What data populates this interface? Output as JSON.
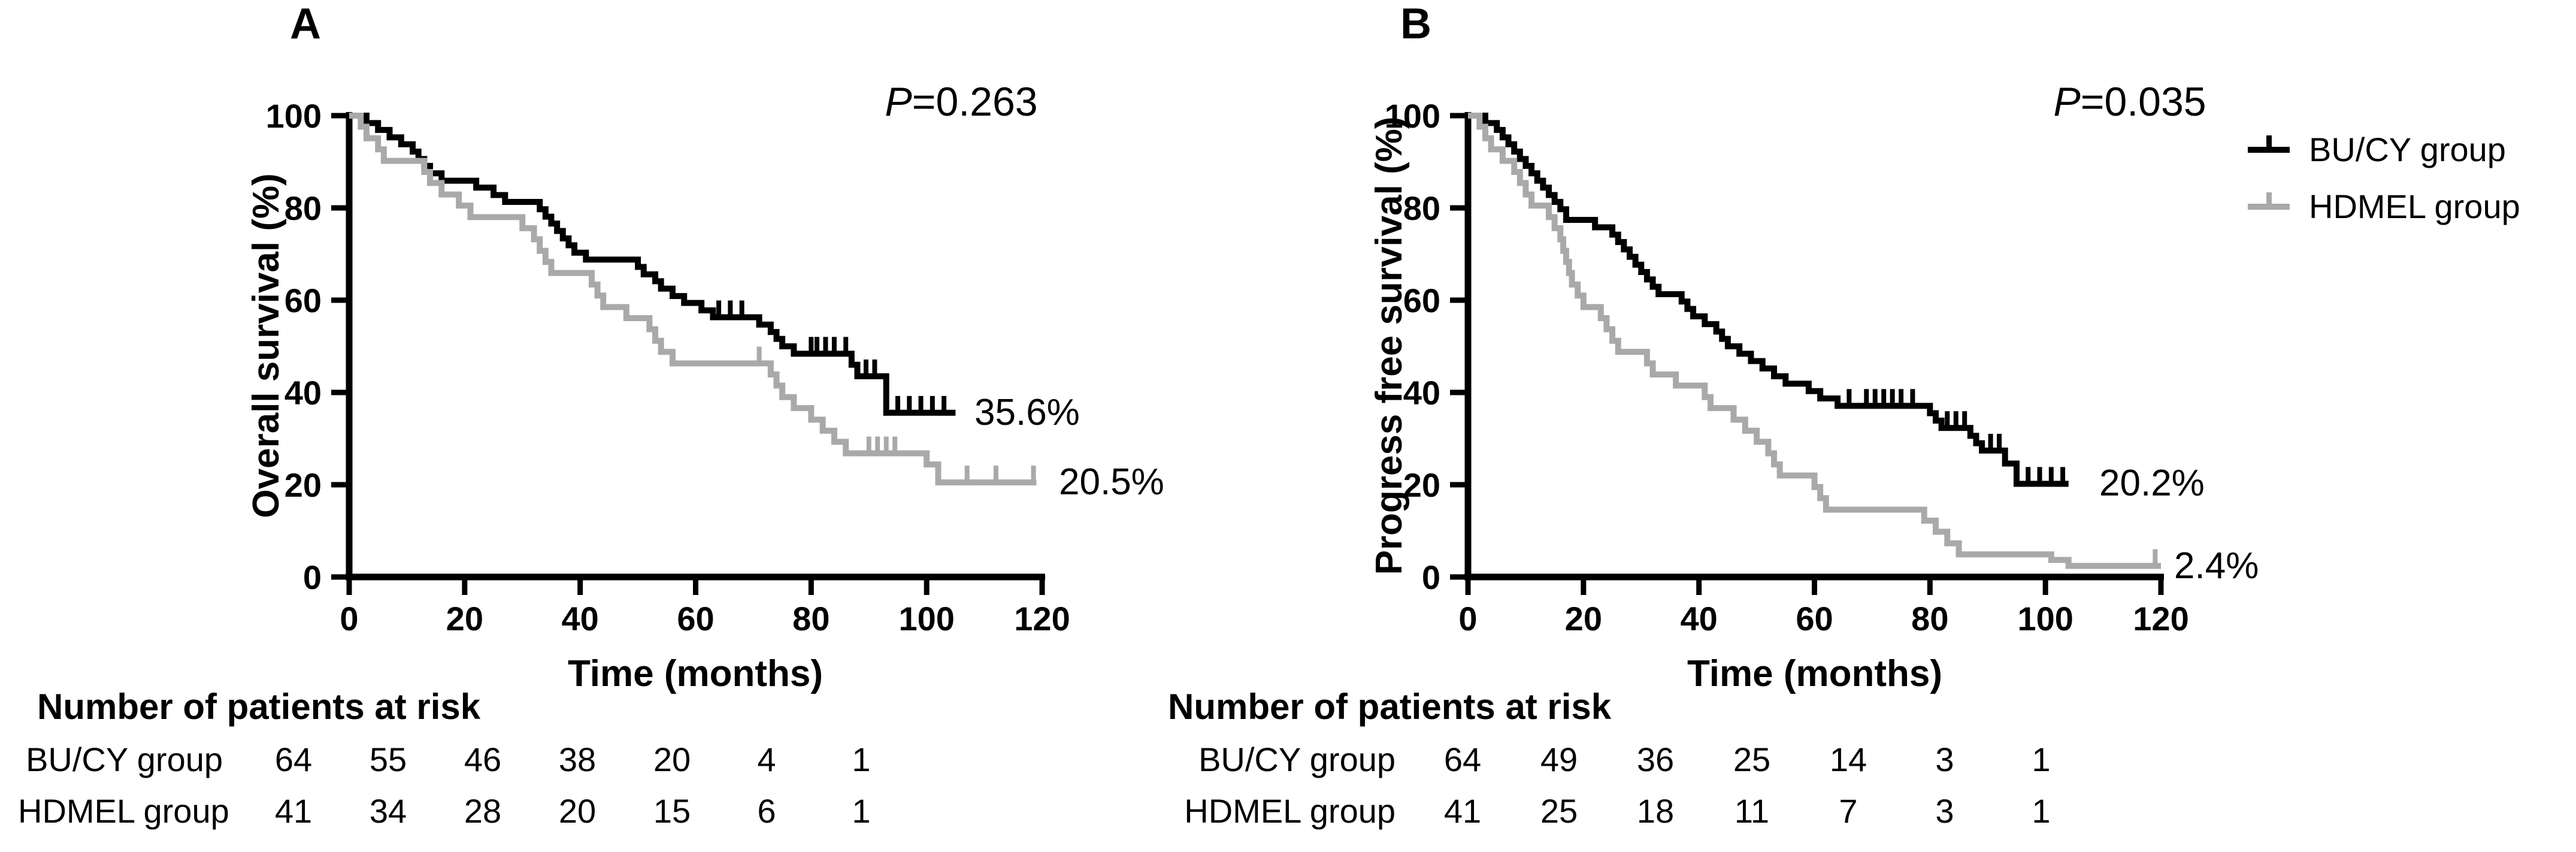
{
  "figure": {
    "colors": {
      "black": "#000000",
      "gray": "#a9a9a9",
      "background": "#ffffff"
    },
    "panels": [
      {
        "label": "A",
        "p_italic": "P",
        "p_rest": "=0.263",
        "risk_header": "Number of patients at risk",
        "risk_rows": [
          {
            "label": "BU/CY group",
            "counts": [
              "64",
              "55",
              "46",
              "38",
              "20",
              "4",
              "1"
            ]
          },
          {
            "label": "HDMEL group",
            "counts": [
              "41",
              "34",
              "28",
              "20",
              "15",
              "6",
              "1"
            ]
          }
        ]
      },
      {
        "label": "B",
        "p_italic": "P",
        "p_rest": "=0.035",
        "risk_header": "Number of patients at risk",
        "risk_rows": [
          {
            "label": "BU/CY group",
            "counts": [
              "64",
              "49",
              "36",
              "25",
              "14",
              "3",
              "1"
            ]
          },
          {
            "label": "HDMEL group",
            "counts": [
              "41",
              "25",
              "18",
              "11",
              "7",
              "3",
              "1"
            ]
          }
        ]
      }
    ],
    "legend": [
      {
        "label": "BU/CY group",
        "color": "#000000"
      },
      {
        "label": "HDMEL group",
        "color": "#a9a9a9"
      }
    ]
  },
  "chart_data": [
    {
      "type": "line",
      "subtype": "kaplan-meier-step",
      "panel": "A",
      "title": "",
      "xlabel": "Time (months)",
      "ylabel": "Overall survival (%)",
      "p_value": "P=0.263",
      "xlim": [
        0,
        120
      ],
      "ylim": [
        0,
        100
      ],
      "x_ticks": [
        "0",
        "20",
        "40",
        "60",
        "80",
        "100",
        "120"
      ],
      "y_ticks": [
        "0",
        "20",
        "40",
        "60",
        "80",
        "100"
      ],
      "grid": false,
      "at_risk_times": [
        0,
        20,
        40,
        60,
        80,
        100,
        120
      ],
      "series": [
        {
          "name": "BU/CY group",
          "color": "#000000",
          "end_label": "35.6%",
          "end_x": 105,
          "points": [
            [
              0,
              100
            ],
            [
              3,
              98.4
            ],
            [
              5,
              96.9
            ],
            [
              7,
              95.3
            ],
            [
              9,
              93.8
            ],
            [
              11,
              92.2
            ],
            [
              12,
              90.6
            ],
            [
              13,
              89.1
            ],
            [
              14,
              87.5
            ],
            [
              16,
              85.9
            ],
            [
              22,
              84.4
            ],
            [
              25,
              82.8
            ],
            [
              27,
              81.3
            ],
            [
              33,
              79.7
            ],
            [
              34,
              78.1
            ],
            [
              35,
              76.6
            ],
            [
              36,
              75
            ],
            [
              37,
              73.4
            ],
            [
              38,
              71.9
            ],
            [
              39,
              70.3
            ],
            [
              41,
              68.8
            ],
            [
              50,
              67.2
            ],
            [
              51,
              65.6
            ],
            [
              53,
              64.1
            ],
            [
              54,
              62.5
            ],
            [
              56,
              60.9
            ],
            [
              58,
              59.4
            ],
            [
              61,
              57.8
            ],
            [
              63,
              56.3
            ],
            [
              71,
              54.7
            ],
            [
              73,
              53.1
            ],
            [
              74,
              51.6
            ],
            [
              75,
              50
            ],
            [
              77,
              48.4
            ],
            [
              87,
              46
            ],
            [
              88,
              43.5
            ],
            [
              93,
              35.6
            ]
          ],
          "censors": [
            [
              64,
              56.3
            ],
            [
              66,
              56.3
            ],
            [
              68,
              56.3
            ],
            [
              80,
              48.4
            ],
            [
              81,
              48.4
            ],
            [
              82.5,
              48.4
            ],
            [
              84,
              48.4
            ],
            [
              86,
              48.4
            ],
            [
              89.5,
              43.5
            ],
            [
              91,
              43.5
            ],
            [
              95,
              35.6
            ],
            [
              97,
              35.6
            ],
            [
              99,
              35.6
            ],
            [
              101,
              35.6
            ],
            [
              103,
              35.6
            ]
          ],
          "at_risk": [
            64,
            55,
            46,
            38,
            20,
            4,
            1
          ]
        },
        {
          "name": "HDMEL group",
          "color": "#a9a9a9",
          "end_label": "20.5%",
          "end_x": 119,
          "points": [
            [
              0,
              100
            ],
            [
              2,
              97.6
            ],
            [
              3,
              95.1
            ],
            [
              5,
              92.7
            ],
            [
              6,
              90.2
            ],
            [
              13,
              87.8
            ],
            [
              14,
              85.4
            ],
            [
              16,
              82.9
            ],
            [
              19,
              80.5
            ],
            [
              21,
              78
            ],
            [
              30,
              75.6
            ],
            [
              32,
              73.2
            ],
            [
              33,
              70.7
            ],
            [
              34,
              68.3
            ],
            [
              35,
              65.9
            ],
            [
              42,
              63.4
            ],
            [
              43,
              61
            ],
            [
              44,
              58.5
            ],
            [
              48,
              56.1
            ],
            [
              52,
              53.7
            ],
            [
              53,
              51.2
            ],
            [
              54,
              48.8
            ],
            [
              56,
              46.3
            ],
            [
              73,
              43.9
            ],
            [
              74,
              41.5
            ],
            [
              75,
              39
            ],
            [
              77,
              36.6
            ],
            [
              80,
              34.1
            ],
            [
              82,
              31.7
            ],
            [
              84,
              29.3
            ],
            [
              86,
              26.8
            ],
            [
              100,
              24.4
            ],
            [
              102,
              20.5
            ]
          ],
          "censors": [
            [
              71,
              46.3
            ],
            [
              90,
              26.8
            ],
            [
              91.5,
              26.8
            ],
            [
              93,
              26.8
            ],
            [
              94.5,
              26.8
            ],
            [
              107,
              20.5
            ],
            [
              112,
              20.5
            ],
            [
              118.5,
              20.5
            ]
          ],
          "at_risk": [
            41,
            34,
            28,
            20,
            15,
            6,
            1
          ]
        }
      ]
    },
    {
      "type": "line",
      "subtype": "kaplan-meier-step",
      "panel": "B",
      "title": "",
      "xlabel": "Time (months)",
      "ylabel": "Progress free survival (%)",
      "p_value": "P=0.035",
      "xlim": [
        0,
        120
      ],
      "ylim": [
        0,
        100
      ],
      "x_ticks": [
        "0",
        "20",
        "40",
        "60",
        "80",
        "100",
        "120"
      ],
      "y_ticks": [
        "0",
        "20",
        "40",
        "60",
        "80",
        "100"
      ],
      "grid": false,
      "at_risk_times": [
        0,
        20,
        40,
        60,
        80,
        100,
        120
      ],
      "series": [
        {
          "name": "BU/CY group",
          "color": "#000000",
          "end_label": "20.2%",
          "end_x": 104,
          "points": [
            [
              0,
              100
            ],
            [
              3,
              98.4
            ],
            [
              5,
              96.9
            ],
            [
              6,
              95.3
            ],
            [
              7,
              93.8
            ],
            [
              8,
              92.2
            ],
            [
              9,
              90.6
            ],
            [
              10,
              89.1
            ],
            [
              11,
              87.5
            ],
            [
              12,
              85.9
            ],
            [
              13,
              84.4
            ],
            [
              14,
              82.8
            ],
            [
              15,
              81.3
            ],
            [
              16,
              79.7
            ],
            [
              17,
              77.4
            ],
            [
              22,
              75.8
            ],
            [
              25,
              74.2
            ],
            [
              26,
              72.6
            ],
            [
              27,
              71
            ],
            [
              28,
              69.4
            ],
            [
              29,
              67.7
            ],
            [
              30,
              66.1
            ],
            [
              31,
              64.5
            ],
            [
              32,
              62.9
            ],
            [
              33,
              61.3
            ],
            [
              37,
              59.7
            ],
            [
              38,
              58.1
            ],
            [
              39,
              56.5
            ],
            [
              41,
              54.8
            ],
            [
              43,
              53.2
            ],
            [
              44,
              51.6
            ],
            [
              45,
              50
            ],
            [
              47,
              48.4
            ],
            [
              49,
              46.8
            ],
            [
              51,
              45.2
            ],
            [
              53,
              43.5
            ],
            [
              55,
              41.9
            ],
            [
              59,
              40.3
            ],
            [
              61,
              38.7
            ],
            [
              64,
              37.1
            ],
            [
              80,
              35.5
            ],
            [
              81,
              33.9
            ],
            [
              82,
              32.3
            ],
            [
              87,
              30.6
            ],
            [
              88,
              29
            ],
            [
              89,
              27.4
            ],
            [
              93,
              24.6
            ],
            [
              95,
              20.2
            ]
          ],
          "censors": [
            [
              66,
              37.1
            ],
            [
              69,
              37.1
            ],
            [
              70.5,
              37.1
            ],
            [
              72,
              37.1
            ],
            [
              73.5,
              37.1
            ],
            [
              75,
              37.1
            ],
            [
              77,
              37.1
            ],
            [
              83,
              32.3
            ],
            [
              84.5,
              32.3
            ],
            [
              86,
              32.3
            ],
            [
              90.5,
              27.4
            ],
            [
              92,
              27.4
            ],
            [
              97,
              20.2
            ],
            [
              99,
              20.2
            ],
            [
              101,
              20.2
            ],
            [
              103,
              20.2
            ]
          ],
          "at_risk": [
            64,
            49,
            36,
            25,
            14,
            3,
            1
          ]
        },
        {
          "name": "HDMEL group",
          "color": "#a9a9a9",
          "end_label": "2.4%",
          "end_x": 120,
          "points": [
            [
              0,
              100
            ],
            [
              2,
              97.6
            ],
            [
              3,
              95.1
            ],
            [
              4,
              92.7
            ],
            [
              6,
              90.2
            ],
            [
              8,
              87.8
            ],
            [
              9,
              85.4
            ],
            [
              10,
              82.9
            ],
            [
              11,
              80.5
            ],
            [
              14,
              78
            ],
            [
              15,
              75.6
            ],
            [
              16,
              73.2
            ],
            [
              16.5,
              70.7
            ],
            [
              17,
              68.3
            ],
            [
              17.5,
              65.9
            ],
            [
              18,
              63.4
            ],
            [
              19,
              61
            ],
            [
              20,
              58.5
            ],
            [
              23,
              56.1
            ],
            [
              24,
              53.7
            ],
            [
              25,
              51.2
            ],
            [
              26,
              48.8
            ],
            [
              31,
              46.3
            ],
            [
              32,
              43.9
            ],
            [
              36,
              41.5
            ],
            [
              41,
              39
            ],
            [
              42,
              36.6
            ],
            [
              46,
              34.1
            ],
            [
              48,
              31.7
            ],
            [
              50,
              29.3
            ],
            [
              52,
              26.8
            ],
            [
              53,
              24.4
            ],
            [
              54,
              22
            ],
            [
              60,
              19.5
            ],
            [
              61,
              17.1
            ],
            [
              62,
              14.6
            ],
            [
              79,
              12.2
            ],
            [
              81,
              9.8
            ],
            [
              83,
              7.3
            ],
            [
              85,
              4.9
            ],
            [
              101,
              3.7
            ],
            [
              104,
              2.4
            ]
          ],
          "censors": [
            [
              119,
              2.4
            ]
          ],
          "at_risk": [
            41,
            25,
            18,
            11,
            7,
            3,
            1
          ]
        }
      ]
    }
  ]
}
